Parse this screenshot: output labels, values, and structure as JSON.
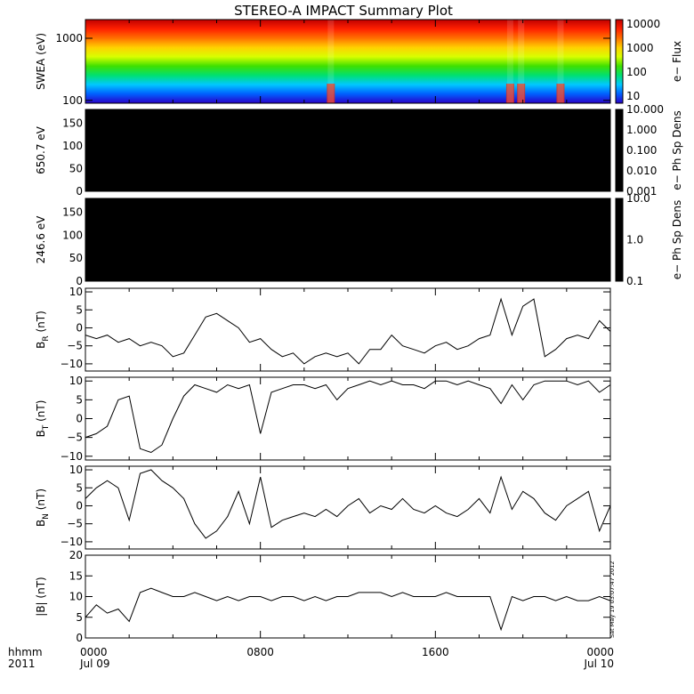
{
  "title": "STEREO-A IMPACT Summary Plot",
  "stamp": "Sat May 19 03:07:47 2012",
  "chart_data": [
    {
      "id": "swea",
      "type": "heatmap",
      "ylabel": "SWEA (eV)",
      "yscale": "log",
      "ylim": [
        90,
        2000
      ],
      "yticks": [
        {
          "v": 100,
          "label": "100"
        },
        {
          "v": 1000,
          "label": "1000"
        }
      ],
      "colorbar": {
        "label": "e− Flux",
        "scale": "log",
        "range": [
          5,
          15000
        ],
        "ticks": [
          {
            "v": 10,
            "label": "10"
          },
          {
            "v": 100,
            "label": "100"
          },
          {
            "v": 1000,
            "label": "1000"
          },
          {
            "v": 10000,
            "label": "10000"
          }
        ],
        "colors": [
          "#2a00c8",
          "#0060ff",
          "#00c8ff",
          "#00e070",
          "#40e000",
          "#d8ff00",
          "#ffd000",
          "#ff7000",
          "#ff2000",
          "#c00000"
        ]
      },
      "enhancements_hour": [
        11.2,
        19.4,
        19.9,
        21.7
      ]
    },
    {
      "id": "pad651",
      "type": "heatmap",
      "ylabel": "650.7 eV",
      "ylim": [
        0,
        180
      ],
      "yticks": [
        {
          "v": 0,
          "label": "0"
        },
        {
          "v": 50,
          "label": "50"
        },
        {
          "v": 100,
          "label": "100"
        },
        {
          "v": 150,
          "label": "150"
        }
      ],
      "colorbar": {
        "label": "e− Ph Sp Dens",
        "scale": "log",
        "range": [
          0.001,
          10
        ],
        "ticks": [
          {
            "v": 0.001,
            "label": "0.001"
          },
          {
            "v": 0.01,
            "label": "0.010"
          },
          {
            "v": 0.1,
            "label": "0.100"
          },
          {
            "v": 1,
            "label": "1.000"
          },
          {
            "v": 10,
            "label": "10.000"
          }
        ],
        "colors": [
          "#000000"
        ]
      }
    },
    {
      "id": "pad247",
      "type": "heatmap",
      "ylabel": "246.6 eV",
      "ylim": [
        0,
        180
      ],
      "yticks": [
        {
          "v": 0,
          "label": "0"
        },
        {
          "v": 50,
          "label": "50"
        },
        {
          "v": 100,
          "label": "100"
        },
        {
          "v": 150,
          "label": "150"
        }
      ],
      "colorbar": {
        "label": "e− Ph Sp Dens",
        "scale": "log",
        "range": [
          0.1,
          10
        ],
        "ticks": [
          {
            "v": 0.1,
            "label": "0.1"
          },
          {
            "v": 1,
            "label": "1.0"
          },
          {
            "v": 10,
            "label": "10.0"
          }
        ],
        "colors": [
          "#000000"
        ]
      }
    },
    {
      "id": "br",
      "type": "line",
      "ylabel": "B",
      "ylabel_sub": "R",
      "ylabel_unit": " (nT)",
      "ylim": [
        -12,
        11
      ],
      "yticks": [
        {
          "v": -10,
          "label": "−10"
        },
        {
          "v": -5,
          "label": "−5"
        },
        {
          "v": 0,
          "label": "0"
        },
        {
          "v": 5,
          "label": "5"
        },
        {
          "v": 10,
          "label": "10"
        }
      ],
      "x": [
        0,
        0.5,
        1,
        1.5,
        2,
        2.5,
        3,
        3.5,
        4,
        4.5,
        5,
        5.5,
        6,
        6.5,
        7,
        7.5,
        8,
        8.5,
        9,
        9.5,
        10,
        10.5,
        11,
        11.5,
        12,
        12.5,
        13,
        13.5,
        14,
        14.5,
        15,
        15.5,
        16,
        16.5,
        17,
        17.5,
        18,
        18.5,
        19,
        19.5,
        20,
        20.5,
        21,
        21.5,
        22,
        22.5,
        23,
        23.5,
        24
      ],
      "y": [
        -2,
        -3,
        -2,
        -4,
        -3,
        -5,
        -4,
        -5,
        -8,
        -7,
        -2,
        3,
        4,
        2,
        0,
        -4,
        -3,
        -6,
        -8,
        -7,
        -10,
        -8,
        -7,
        -8,
        -7,
        -10,
        -6,
        -6,
        -2,
        -5,
        -6,
        -7,
        -5,
        -4,
        -6,
        -5,
        -3,
        -2,
        8,
        -2,
        6,
        8,
        -8,
        -6,
        -3,
        -2,
        -3,
        2,
        -1
      ],
      "color": "#000000"
    },
    {
      "id": "bt",
      "type": "line",
      "ylabel": "B",
      "ylabel_sub": "T",
      "ylabel_unit": " (nT)",
      "ylim": [
        -11,
        11
      ],
      "yticks": [
        {
          "v": -10,
          "label": "−10"
        },
        {
          "v": -5,
          "label": "−5"
        },
        {
          "v": 0,
          "label": "0"
        },
        {
          "v": 5,
          "label": "5"
        },
        {
          "v": 10,
          "label": "10"
        }
      ],
      "x": [
        0,
        0.5,
        1,
        1.5,
        2,
        2.5,
        3,
        3.5,
        4,
        4.5,
        5,
        5.5,
        6,
        6.5,
        7,
        7.5,
        8,
        8.5,
        9,
        9.5,
        10,
        10.5,
        11,
        11.5,
        12,
        12.5,
        13,
        13.5,
        14,
        14.5,
        15,
        15.5,
        16,
        16.5,
        17,
        17.5,
        18,
        18.5,
        19,
        19.5,
        20,
        20.5,
        21,
        21.5,
        22,
        22.5,
        23,
        23.5,
        24
      ],
      "y": [
        -5,
        -4,
        -2,
        5,
        6,
        -8,
        -9,
        -7,
        0,
        6,
        9,
        8,
        7,
        9,
        8,
        9,
        -4,
        7,
        8,
        9,
        9,
        8,
        9,
        5,
        8,
        9,
        10,
        9,
        10,
        9,
        9,
        8,
        10,
        10,
        9,
        10,
        9,
        8,
        4,
        9,
        5,
        9,
        10,
        10,
        10,
        9,
        10,
        7,
        9
      ],
      "color": "#000000"
    },
    {
      "id": "bn",
      "type": "line",
      "ylabel": "B",
      "ylabel_sub": "N",
      "ylabel_unit": " (nT)",
      "ylim": [
        -12,
        11
      ],
      "yticks": [
        {
          "v": -10,
          "label": "−10"
        },
        {
          "v": -5,
          "label": "−5"
        },
        {
          "v": 0,
          "label": "0"
        },
        {
          "v": 5,
          "label": "5"
        },
        {
          "v": 10,
          "label": "10"
        }
      ],
      "x": [
        0,
        0.5,
        1,
        1.5,
        2,
        2.5,
        3,
        3.5,
        4,
        4.5,
        5,
        5.5,
        6,
        6.5,
        7,
        7.5,
        8,
        8.5,
        9,
        9.5,
        10,
        10.5,
        11,
        11.5,
        12,
        12.5,
        13,
        13.5,
        14,
        14.5,
        15,
        15.5,
        16,
        16.5,
        17,
        17.5,
        18,
        18.5,
        19,
        19.5,
        20,
        20.5,
        21,
        21.5,
        22,
        22.5,
        23,
        23.5,
        24
      ],
      "y": [
        2,
        5,
        7,
        5,
        -4,
        9,
        10,
        7,
        5,
        2,
        -5,
        -9,
        -7,
        -3,
        4,
        -5,
        8,
        -6,
        -4,
        -3,
        -2,
        -3,
        -1,
        -3,
        0,
        2,
        -2,
        0,
        -1,
        2,
        -1,
        -2,
        0,
        -2,
        -3,
        -1,
        2,
        -2,
        8,
        -1,
        4,
        2,
        -2,
        -4,
        0,
        2,
        4,
        -7,
        0
      ],
      "color": "#000000"
    },
    {
      "id": "bmag",
      "type": "line",
      "ylabel": "|B| (nT)",
      "ylim": [
        0,
        20
      ],
      "yticks": [
        {
          "v": 0,
          "label": "0"
        },
        {
          "v": 5,
          "label": "5"
        },
        {
          "v": 10,
          "label": "10"
        },
        {
          "v": 15,
          "label": "15"
        },
        {
          "v": 20,
          "label": "20"
        }
      ],
      "x": [
        0,
        0.5,
        1,
        1.5,
        2,
        2.5,
        3,
        3.5,
        4,
        4.5,
        5,
        5.5,
        6,
        6.5,
        7,
        7.5,
        8,
        8.5,
        9,
        9.5,
        10,
        10.5,
        11,
        11.5,
        12,
        12.5,
        13,
        13.5,
        14,
        14.5,
        15,
        15.5,
        16,
        16.5,
        17,
        17.5,
        18,
        18.5,
        19,
        19.5,
        20,
        20.5,
        21,
        21.5,
        22,
        22.5,
        23,
        23.5,
        24
      ],
      "y": [
        5,
        8,
        6,
        7,
        4,
        11,
        12,
        11,
        10,
        10,
        11,
        10,
        9,
        10,
        9,
        10,
        10,
        9,
        10,
        10,
        9,
        10,
        9,
        10,
        10,
        11,
        11,
        11,
        10,
        11,
        10,
        10,
        10,
        11,
        10,
        10,
        10,
        10,
        2,
        10,
        9,
        10,
        10,
        9,
        10,
        9,
        9,
        10,
        9
      ],
      "color": "#000000"
    }
  ],
  "xaxis": {
    "range": [
      0,
      24
    ],
    "row_title": "hhmm",
    "year": "2011",
    "ticks": [
      {
        "v": 0,
        "time": "0000",
        "date": "Jul 09"
      },
      {
        "v": 8,
        "time": "0800",
        "date": ""
      },
      {
        "v": 16,
        "time": "1600",
        "date": ""
      },
      {
        "v": 24,
        "time": "0000",
        "date": "Jul 10"
      }
    ]
  }
}
